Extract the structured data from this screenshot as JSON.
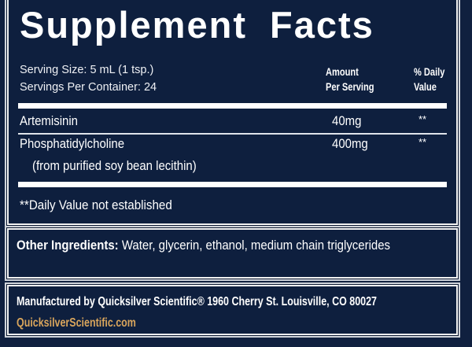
{
  "title": "Supplement Facts",
  "serving_size": "Serving Size: 5 mL (1 tsp.)",
  "servings_per_container": "Servings Per Container: 24",
  "header": {
    "amount_line1": "Amount",
    "amount_line2": "Per Serving",
    "dv_line1": "% Daily",
    "dv_line2": "Value"
  },
  "ingredients": [
    {
      "name": "Artemisinin",
      "amount": "40mg",
      "dv": "**"
    },
    {
      "name": "Phosphatidylcholine",
      "sub": "(from purified soy bean lecithin)",
      "amount": "400mg",
      "dv": "**"
    }
  ],
  "footnote": "**Daily Value not established",
  "other_ingredients": {
    "label": "Other Ingredients:",
    "text": "Water, glycerin, ethanol, medium chain triglycerides"
  },
  "manufacturer": "Manufactured by Quicksilver Scientific® 1960 Cherry St. Louisville, CO 80027",
  "website": "QuicksilverScientific.com",
  "colors": {
    "background": "#10203f",
    "text": "#ffffff",
    "link": "#d9a55c"
  }
}
